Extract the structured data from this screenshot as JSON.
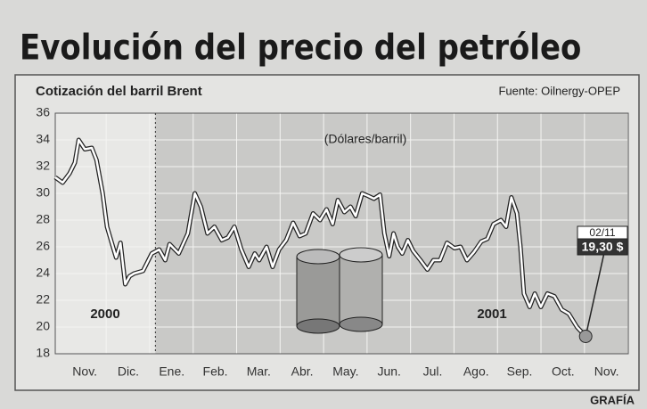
{
  "chart_data": {
    "type": "line",
    "title": "Evolución del precio del petróleo",
    "subtitle": "Cotización del barril Brent",
    "source": "Fuente: Oilnergy-OPEP",
    "y_label": "(Dólares/barril)",
    "period_labels": [
      "2000",
      "2001"
    ],
    "credit": "GRAFÍA",
    "color": "#ffffff",
    "xlim": [
      -0.68,
      12.5
    ],
    "xticks": [
      {
        "value": 0,
        "label": "Nov."
      },
      {
        "value": 1,
        "label": "Dic."
      },
      {
        "value": 2,
        "label": "Ene."
      },
      {
        "value": 3,
        "label": "Feb."
      },
      {
        "value": 4,
        "label": "Mar."
      },
      {
        "value": 5,
        "label": "Abr."
      },
      {
        "value": 6,
        "label": "May."
      },
      {
        "value": 7,
        "label": "Jun."
      },
      {
        "value": 8,
        "label": "Jul."
      },
      {
        "value": 9,
        "label": "Ago."
      },
      {
        "value": 10,
        "label": "Sep."
      },
      {
        "value": 11,
        "label": "Oct."
      },
      {
        "value": 12,
        "label": "Nov."
      }
    ],
    "ylim": [
      18,
      36
    ],
    "yticks": [
      18,
      20,
      22,
      24,
      26,
      28,
      30,
      32,
      34,
      36
    ],
    "grid": true,
    "x": [
      -0.68,
      -0.51,
      -0.35,
      -0.23,
      -0.14,
      0,
      0.16,
      0.27,
      0.41,
      0.51,
      0.62,
      0.72,
      0.82,
      0.93,
      1.03,
      1.13,
      1.34,
      1.54,
      1.71,
      1.85,
      1.95,
      2.16,
      2.37,
      2.53,
      2.67,
      2.82,
      2.98,
      3.15,
      3.29,
      3.44,
      3.6,
      3.77,
      3.91,
      4.01,
      4.18,
      4.32,
      4.47,
      4.63,
      4.79,
      4.94,
      5.08,
      5.25,
      5.41,
      5.56,
      5.7,
      5.82,
      5.97,
      6.11,
      6.23,
      6.38,
      6.52,
      6.65,
      6.79,
      6.89,
      7.0,
      7.1,
      7.2,
      7.3,
      7.43,
      7.55,
      7.72,
      7.88,
      8.02,
      8.17,
      8.33,
      8.5,
      8.64,
      8.79,
      8.95,
      9.12,
      9.26,
      9.4,
      9.57,
      9.69,
      9.81,
      9.94,
      10.02,
      10.1,
      10.23,
      10.35,
      10.49,
      10.64,
      10.8,
      10.97,
      11.13,
      11.32,
      11.52
    ],
    "values": [
      31.2,
      30.8,
      31.5,
      32.3,
      34,
      33.3,
      33.4,
      32.5,
      30,
      27.5,
      26.3,
      25.2,
      26.3,
      23.2,
      23.8,
      24,
      24.2,
      25.5,
      25.8,
      25,
      26.2,
      25.5,
      27,
      30,
      29,
      27,
      27.5,
      26.5,
      26.7,
      27.5,
      25.8,
      24.5,
      25.5,
      25,
      26,
      24.5,
      25.8,
      26.5,
      27.8,
      26.8,
      27,
      28.5,
      28,
      28.8,
      27.7,
      29.5,
      28.6,
      29,
      28.3,
      30,
      29.8,
      29.6,
      29.9,
      27,
      25.3,
      27,
      26,
      25.5,
      26.5,
      25.7,
      25,
      24.3,
      25,
      25,
      26.3,
      25.9,
      26,
      25,
      25.6,
      26.4,
      26.6,
      27.7,
      28,
      27.5,
      29.7,
      28.5,
      26,
      22.5,
      21.5,
      22.5,
      21.5,
      22.5,
      22.3,
      21.3,
      21,
      20,
      19.3
    ],
    "annotation": {
      "date": "02/11",
      "label": "19,30 $",
      "value": 19.3
    }
  }
}
